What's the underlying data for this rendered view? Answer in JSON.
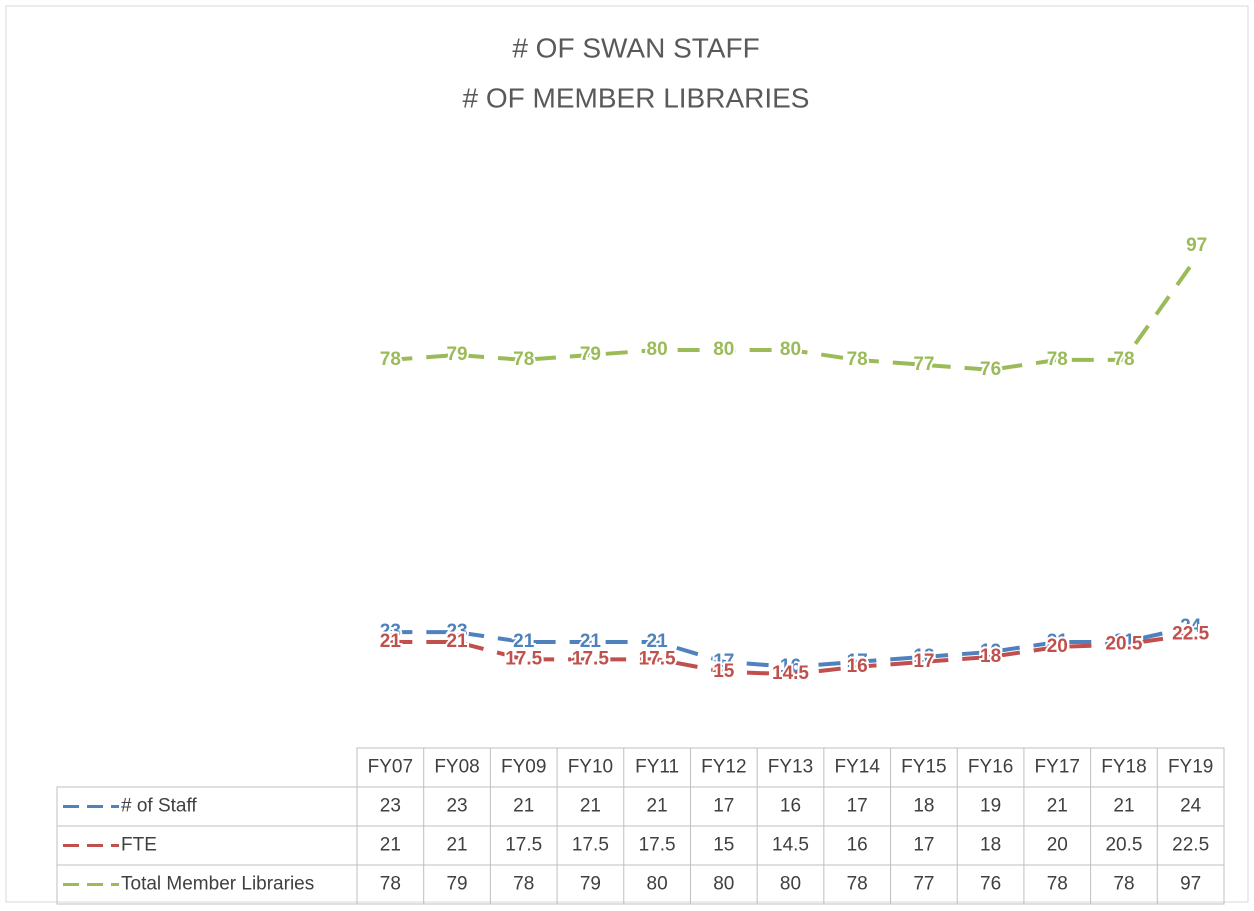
{
  "chart_data": {
    "type": "line",
    "title": [
      "# OF SWAN STAFF",
      "# OF MEMBER LIBRARIES"
    ],
    "categories": [
      "FY07",
      "FY08",
      "FY09",
      "FY10",
      "FY11",
      "FY12",
      "FY13",
      "FY14",
      "FY15",
      "FY16",
      "FY17",
      "FY18",
      "FY19"
    ],
    "ylim": [
      0,
      120
    ],
    "series": [
      {
        "name": "# of Staff",
        "color": "#4f81bd",
        "values": [
          23,
          23,
          21,
          21,
          21,
          17,
          16,
          17,
          18,
          19,
          21,
          21,
          24
        ]
      },
      {
        "name": "FTE",
        "color": "#c0504d",
        "values": [
          21,
          21,
          17.5,
          17.5,
          17.5,
          15,
          14.5,
          16,
          17,
          18,
          20,
          20.5,
          22.5
        ]
      },
      {
        "name": "Total Member Libraries",
        "color": "#9bbb59",
        "values": [
          78,
          79,
          78,
          79,
          80,
          80,
          80,
          78,
          77,
          76,
          78,
          78,
          97
        ]
      }
    ],
    "data_table": true
  }
}
